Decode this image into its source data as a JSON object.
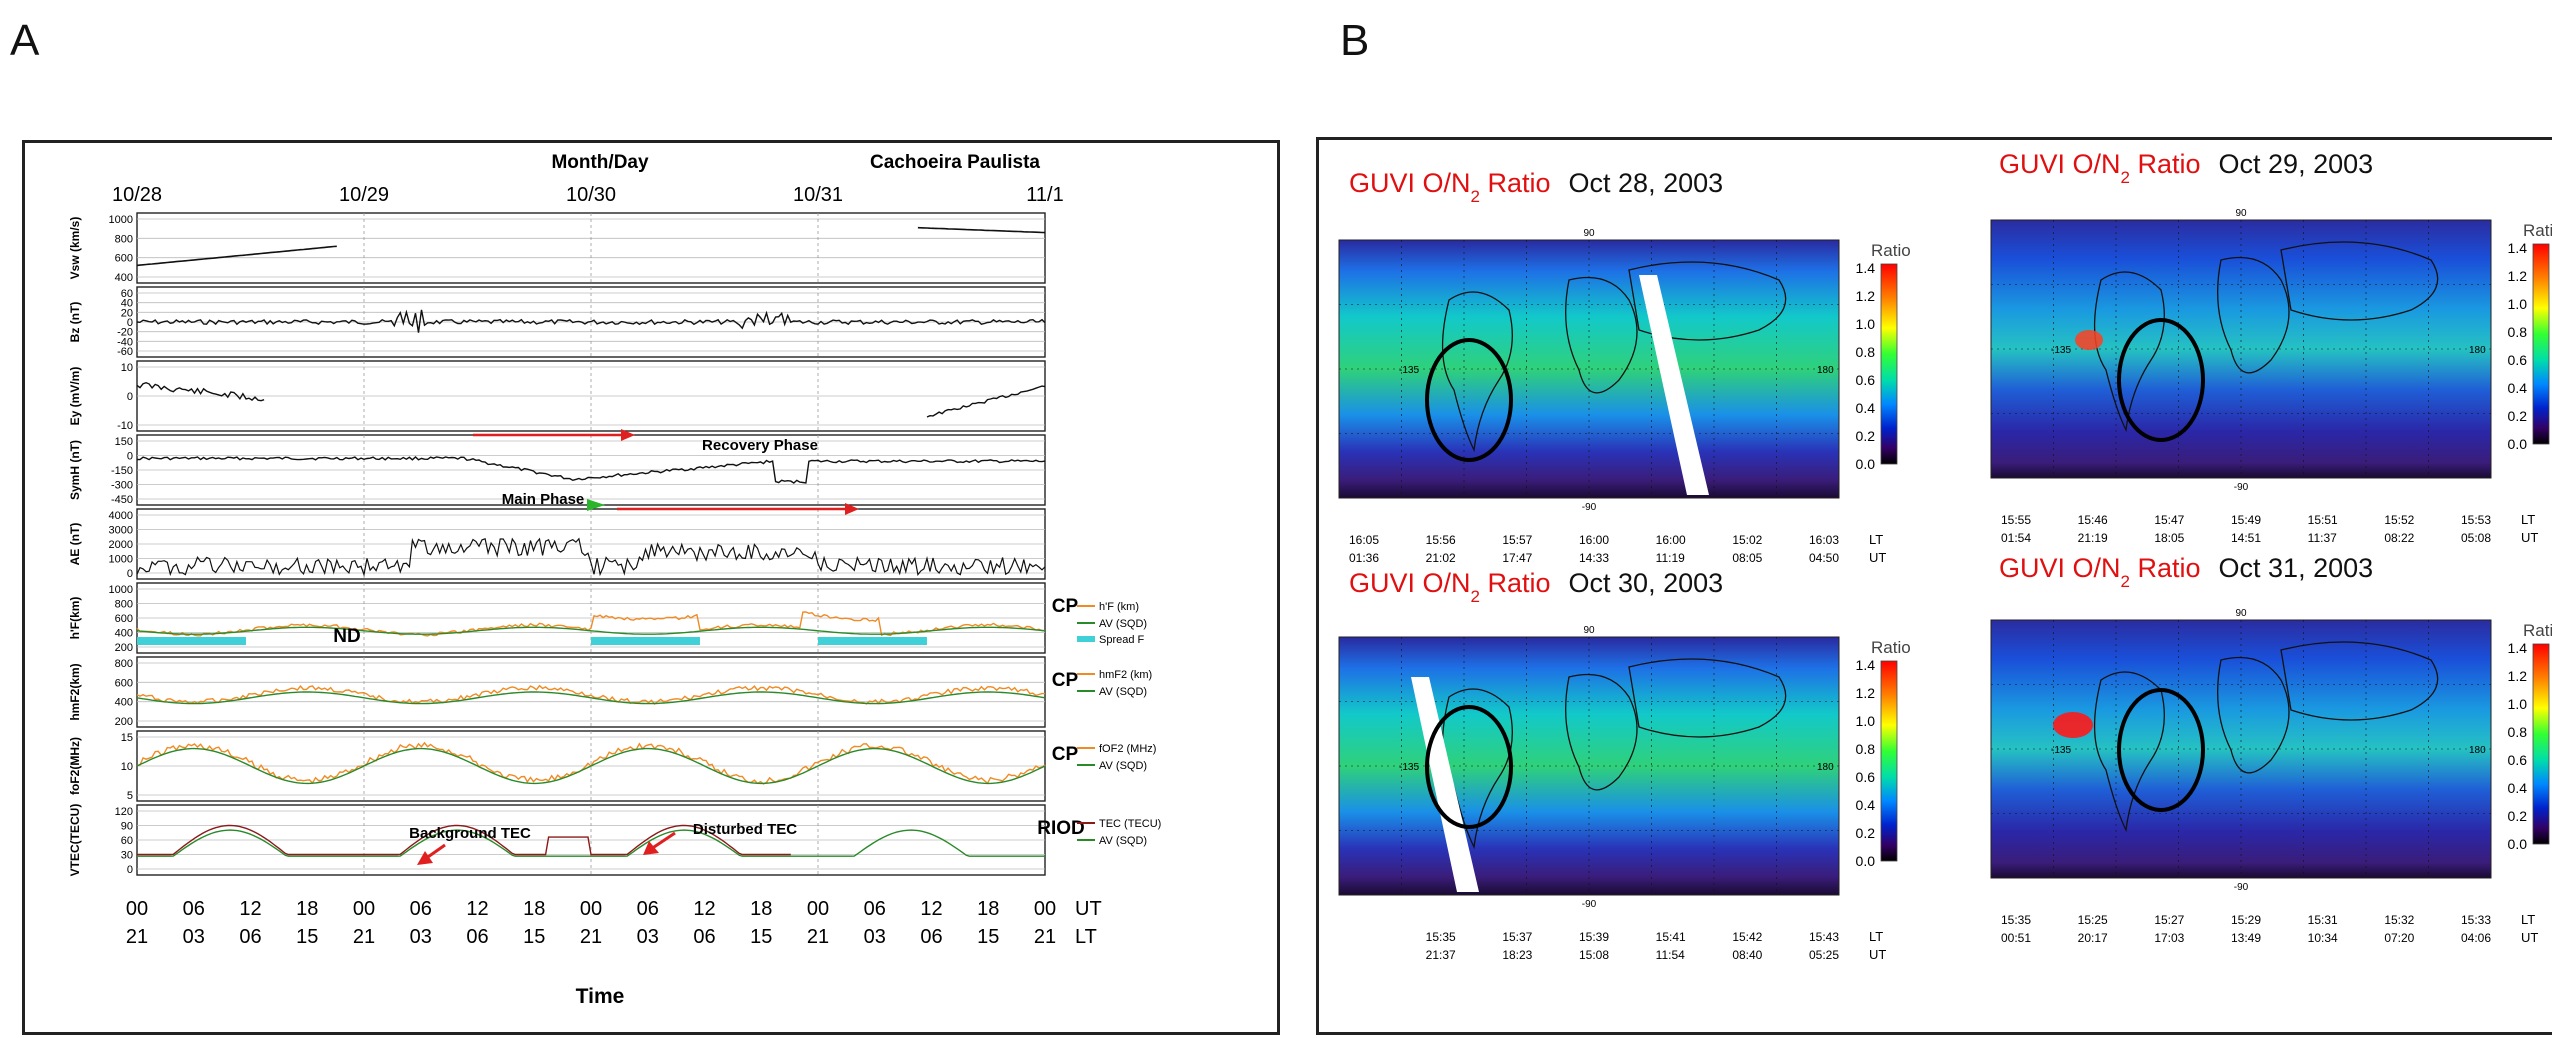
{
  "panel_a": {
    "letter": "A",
    "header_center": "Month/Day",
    "header_right": "Cachoeira Paulista",
    "dates": [
      "10/28",
      "10/29",
      "10/30",
      "10/31",
      "11/1"
    ],
    "ut_ticks": [
      "00",
      "06",
      "12",
      "18",
      "00",
      "06",
      "12",
      "18",
      "00",
      "06",
      "12",
      "18",
      "00",
      "06",
      "12",
      "18",
      "00"
    ],
    "lt_ticks": [
      "21",
      "03",
      "06",
      "15",
      "21",
      "03",
      "06",
      "15",
      "21",
      "03",
      "06",
      "15",
      "21",
      "03",
      "06",
      "15",
      "21"
    ],
    "ut_label": "UT",
    "lt_label": "LT",
    "xlabel": "Time",
    "rows": [
      {
        "ylabel": "Vsw (km/s)",
        "ticks": [
          "1000",
          "800",
          "600",
          "400"
        ]
      },
      {
        "ylabel": "Bz (nT)",
        "ticks": [
          "60",
          "40",
          "20",
          "0",
          "-20",
          "-40",
          "-60"
        ]
      },
      {
        "ylabel": "Ey (mV/m)",
        "ticks": [
          "10",
          "0",
          "-10"
        ]
      },
      {
        "ylabel": "SymH (nT)",
        "ticks": [
          "150",
          "0",
          "-150",
          "-300",
          "-450"
        ]
      },
      {
        "ylabel": "AE (nT)",
        "ticks": [
          "4000",
          "3000",
          "2000",
          "1000",
          "0"
        ]
      },
      {
        "ylabel": "h'F(km)",
        "ticks": [
          "1000",
          "800",
          "600",
          "400",
          "200"
        ]
      },
      {
        "ylabel": "hmF2(km)",
        "ticks": [
          "800",
          "600",
          "400",
          "200"
        ]
      },
      {
        "ylabel": "foF2(MHz)",
        "ticks": [
          "15",
          "10",
          "5"
        ]
      },
      {
        "ylabel": "VTEC(TECU)",
        "ticks": [
          "120",
          "90",
          "60",
          "30",
          "0"
        ]
      }
    ],
    "annotations": {
      "recovery": "Recovery Phase",
      "main": "Main Phase",
      "nd": "ND",
      "cp1": "CP",
      "cp2": "CP",
      "cp3": "CP",
      "riod": "RIOD",
      "bg_tec": "Background TEC",
      "dist_tec": "Disturbed TEC"
    },
    "legends": {
      "hf": [
        "h'F (km)",
        "AV (SQD)",
        "Spread F"
      ],
      "hmf2": [
        "hmF2 (km)",
        "AV (SQD)"
      ],
      "fof2": [
        "fOF2 (MHz)",
        "AV (SQD)"
      ],
      "tec": [
        "TEC (TECU)",
        "AV     (SQD)"
      ]
    },
    "colors": {
      "orange": "#f08a24",
      "green": "#2a8a2a",
      "cyan": "#40d0d8",
      "red": "#e02020",
      "darkred": "#8b1a1a"
    }
  },
  "panel_b": {
    "letter": "B",
    "title_prefix": "GUVI  O/N",
    "title_sub": "2",
    "title_suffix": " Ratio",
    "colorbar_label": "Ratio",
    "colorbar_ticks": [
      "1.4",
      "1.2",
      "1.0",
      "0.8",
      "0.6",
      "0.4",
      "0.2",
      "0.0"
    ],
    "lat_top": "90",
    "lat_bottom": "-90",
    "lon_left": "-135",
    "lon_right": "180",
    "maps": [
      {
        "date": "Oct 28,  2003",
        "lt": [
          "16:05",
          "15:56",
          "15:57",
          "16:00",
          "16:00",
          "15:02",
          "16:03"
        ],
        "ut": [
          "01:36",
          "21:02",
          "17:47",
          "14:33",
          "11:19",
          "08:05",
          "04:50"
        ]
      },
      {
        "date": "Oct 29,  2003",
        "lt": [
          "15:55",
          "15:46",
          "15:47",
          "15:49",
          "15:51",
          "15:52",
          "15:53"
        ],
        "ut": [
          "01:54",
          "21:19",
          "18:05",
          "14:51",
          "11:37",
          "08:22",
          "05:08"
        ]
      },
      {
        "date": "Oct 30,  2003",
        "lt": [
          "",
          "15:35",
          "15:37",
          "15:39",
          "15:41",
          "15:42",
          "15:43"
        ],
        "ut": [
          "",
          "21:37",
          "18:23",
          "15:08",
          "11:54",
          "08:40",
          "05:25"
        ]
      },
      {
        "date": "Oct 31,  2003",
        "lt": [
          "15:35",
          "15:25",
          "15:27",
          "15:29",
          "15:31",
          "15:32",
          "15:33"
        ],
        "ut": [
          "00:51",
          "20:17",
          "17:03",
          "13:49",
          "10:34",
          "07:20",
          "04:06"
        ]
      }
    ],
    "lt_label": "LT",
    "ut_label": "UT"
  }
}
